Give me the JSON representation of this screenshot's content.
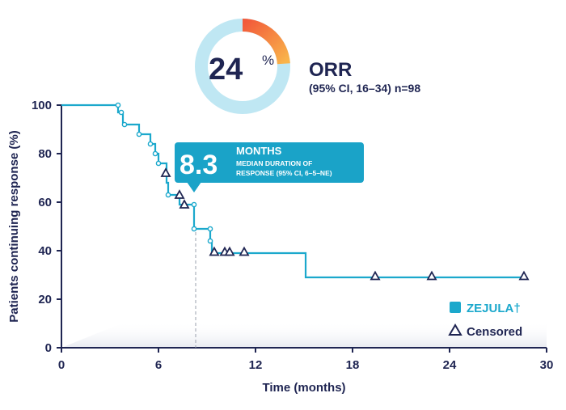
{
  "colors": {
    "navy": "#1f2552",
    "teal": "#1ba8cc",
    "light_teal": "#bfe7f3",
    "callout": "#1aa3c8",
    "orange": "#f47c3a",
    "orange_light": "#f9b44a",
    "dash": "#9aa0ad"
  },
  "orr": {
    "value": "24",
    "percent_sign": "%",
    "label": "ORR",
    "sublabel": "(95% CI, 16–34) n=98",
    "fraction": 0.24
  },
  "callout": {
    "value": "8.3",
    "unit": "MONTHS",
    "line1": "MEDIAN DURATION OF",
    "line2": "RESPONSE (95% CI, 6–5–NE)"
  },
  "chart_data": {
    "type": "line",
    "xlabel": "Time (months)",
    "ylabel": "Patients continuing response (%)",
    "xlim": [
      0,
      30
    ],
    "ylim": [
      0,
      100
    ],
    "x_ticks": [
      0,
      6,
      12,
      18,
      24,
      30
    ],
    "y_ticks": [
      0,
      20,
      40,
      60,
      80,
      100
    ],
    "median_x": 8.3,
    "series": [
      {
        "name": "ZEJULA†",
        "step_points": [
          [
            0,
            100
          ],
          [
            3.5,
            100
          ],
          [
            3.5,
            97
          ],
          [
            3.8,
            97
          ],
          [
            3.8,
            92
          ],
          [
            4.8,
            92
          ],
          [
            4.8,
            88
          ],
          [
            5.5,
            88
          ],
          [
            5.5,
            84
          ],
          [
            5.8,
            84
          ],
          [
            5.8,
            80
          ],
          [
            6.0,
            80
          ],
          [
            6.0,
            76
          ],
          [
            6.5,
            76
          ],
          [
            6.5,
            68
          ],
          [
            6.6,
            68
          ],
          [
            6.6,
            63
          ],
          [
            7.3,
            63
          ],
          [
            7.3,
            59
          ],
          [
            8.2,
            59
          ],
          [
            8.2,
            49
          ],
          [
            9.2,
            49
          ],
          [
            9.2,
            44
          ],
          [
            9.3,
            44
          ],
          [
            9.3,
            39
          ],
          [
            15.1,
            39
          ],
          [
            15.1,
            29
          ],
          [
            28.5,
            29
          ]
        ],
        "event_marks": [
          [
            3.5,
            100
          ],
          [
            3.7,
            97
          ],
          [
            3.9,
            92
          ],
          [
            4.8,
            88
          ],
          [
            5.5,
            84
          ],
          [
            5.8,
            80
          ],
          [
            6.0,
            76
          ],
          [
            6.6,
            63
          ],
          [
            8.2,
            59
          ],
          [
            8.2,
            49
          ],
          [
            9.2,
            49
          ],
          [
            9.2,
            44
          ]
        ]
      }
    ],
    "censored": [
      [
        6.45,
        72
      ],
      [
        7.3,
        63
      ],
      [
        7.6,
        59
      ],
      [
        9.45,
        39.5
      ],
      [
        10.1,
        39.5
      ],
      [
        10.4,
        39.5
      ],
      [
        11.3,
        39.5
      ],
      [
        19.4,
        29.5
      ],
      [
        22.9,
        29.5
      ],
      [
        28.6,
        29.5
      ]
    ],
    "legend": {
      "position": "bottom-right",
      "series_label": "ZEJULA†",
      "censored_label": "Censored"
    }
  }
}
